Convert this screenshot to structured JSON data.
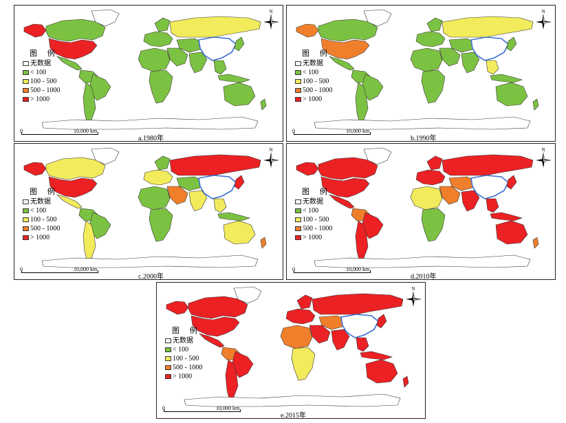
{
  "legend": {
    "title": "图 例",
    "items": [
      {
        "label": "无数据",
        "color": "#ffffff"
      },
      {
        "label": "< 100",
        "color": "#7cc242"
      },
      {
        "label": "100 - 500",
        "color": "#f2eb5c"
      },
      {
        "label": "500 - 1000",
        "color": "#f07f2b"
      },
      {
        "label": "> 1000",
        "color": "#ec2124"
      }
    ]
  },
  "scale": {
    "zero": "0",
    "distance": "10,000 km"
  },
  "compass_label": "N",
  "colors": {
    "china_outline": "#3a6fd0",
    "border": "#333333",
    "no_data": "#ffffff"
  },
  "panels": [
    {
      "id": "a",
      "caption": "a.1980年",
      "regions": {
        "northamerica": 4,
        "canada": 1,
        "alaska": 4,
        "greenland": 0,
        "mexico": 1,
        "southamerica": 1,
        "brazil": 1,
        "argentina": 1,
        "europe": 1,
        "scandinavia": 1,
        "russia": 2,
        "centralasia": 1,
        "mideast": 1,
        "africa": 1,
        "africa2": 1,
        "india": 1,
        "seasia": 1,
        "japan": 1,
        "indonesia": 1,
        "australia": 1,
        "nz": 1
      }
    },
    {
      "id": "b",
      "caption": "b.1990年",
      "regions": {
        "northamerica": 3,
        "canada": 1,
        "alaska": 3,
        "greenland": 0,
        "mexico": 1,
        "southamerica": 1,
        "brazil": 1,
        "argentina": 1,
        "europe": 1,
        "scandinavia": 1,
        "russia": 2,
        "centralasia": 1,
        "mideast": 1,
        "africa": 1,
        "africa2": 1,
        "india": 1,
        "seasia": 2,
        "japan": 1,
        "indonesia": 1,
        "australia": 1,
        "nz": 1
      }
    },
    {
      "id": "c",
      "caption": "c.2000年",
      "regions": {
        "northamerica": 4,
        "canada": 2,
        "alaska": 4,
        "greenland": 0,
        "mexico": 2,
        "southamerica": 1,
        "brazil": 1,
        "argentina": 2,
        "europe": 2,
        "scandinavia": 1,
        "russia": 4,
        "centralasia": 1,
        "mideast": 3,
        "africa": 1,
        "africa2": 1,
        "india": 2,
        "seasia": 2,
        "japan": 4,
        "indonesia": 1,
        "australia": 2,
        "nz": 3
      }
    },
    {
      "id": "d",
      "caption": "d.2010年",
      "regions": {
        "northamerica": 4,
        "canada": 4,
        "alaska": 4,
        "greenland": 0,
        "mexico": 4,
        "southamerica": 3,
        "brazil": 4,
        "argentina": 4,
        "europe": 4,
        "scandinavia": 4,
        "russia": 4,
        "centralasia": 3,
        "mideast": 3,
        "africa": 2,
        "africa2": 1,
        "india": 4,
        "seasia": 4,
        "japan": 4,
        "indonesia": 4,
        "australia": 4,
        "nz": 3
      }
    },
    {
      "id": "e",
      "caption": "e.2015年",
      "regions": {
        "northamerica": 4,
        "canada": 4,
        "alaska": 4,
        "greenland": 0,
        "mexico": 4,
        "southamerica": 3,
        "brazil": 4,
        "argentina": 4,
        "europe": 4,
        "scandinavia": 4,
        "russia": 4,
        "centralasia": 3,
        "mideast": 4,
        "africa": 3,
        "africa2": 2,
        "india": 4,
        "seasia": 4,
        "japan": 4,
        "indonesia": 4,
        "australia": 4,
        "nz": 4
      }
    }
  ]
}
